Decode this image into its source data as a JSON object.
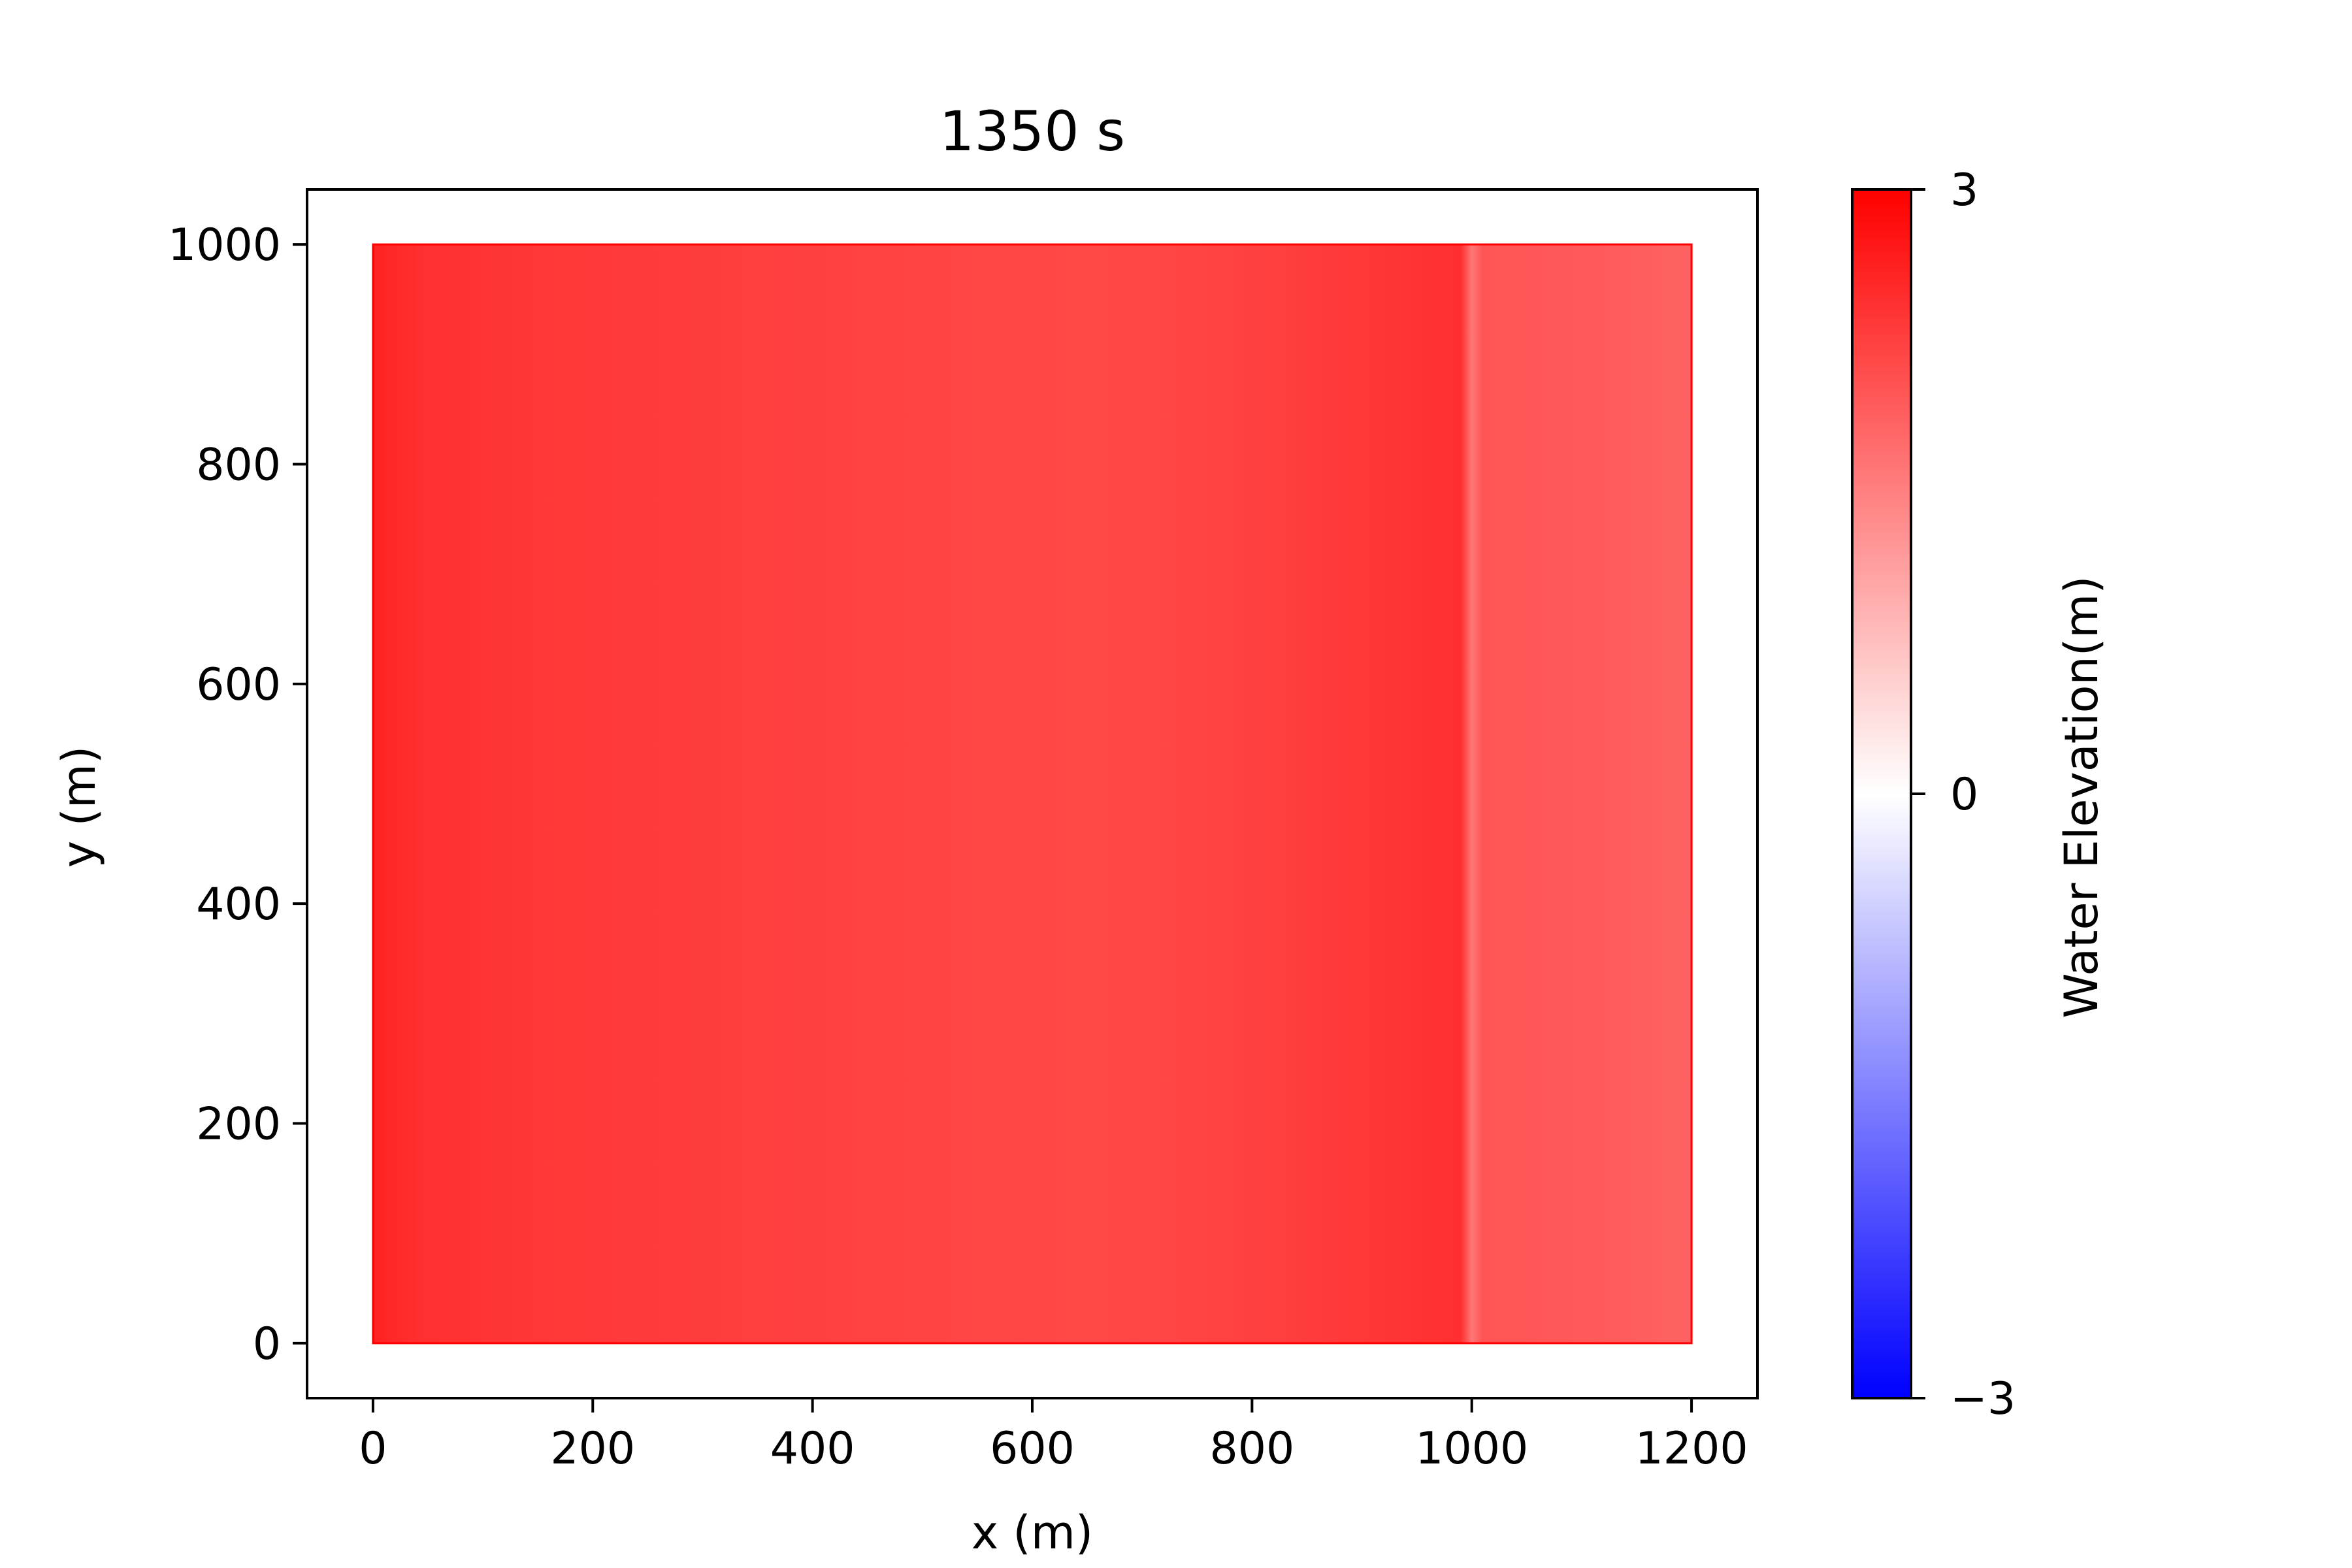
{
  "chart_data": {
    "type": "heatmap",
    "title": "1350 s",
    "xlabel": "x (m)",
    "ylabel": "y (m)",
    "xlim": [
      -60,
      1260
    ],
    "ylim": [
      -50,
      1050
    ],
    "x_ticks": [
      0,
      200,
      400,
      600,
      800,
      1000,
      1200
    ],
    "y_ticks": [
      0,
      200,
      400,
      600,
      800,
      1000
    ],
    "domain": {
      "x": [
        0,
        1200
      ],
      "y": [
        0,
        1000
      ]
    },
    "field_profile": {
      "x": [
        0,
        40,
        150,
        300,
        500,
        650,
        750,
        850,
        990,
        1000,
        1010,
        1100,
        1200
      ],
      "water_elevation": [
        2.6,
        2.45,
        2.35,
        2.3,
        2.2,
        2.15,
        2.2,
        2.3,
        2.45,
        1.6,
        2.0,
        1.95,
        1.85
      ]
    },
    "colorbar": {
      "label": "Water Elevation(m)",
      "min": -3,
      "max": 3,
      "ticks": [
        3,
        0,
        -3
      ],
      "tick_labels": [
        "3",
        "0",
        "−3"
      ],
      "colors": [
        "#0000ff",
        "#ffffff",
        "#ff0000"
      ]
    },
    "grid": false
  }
}
